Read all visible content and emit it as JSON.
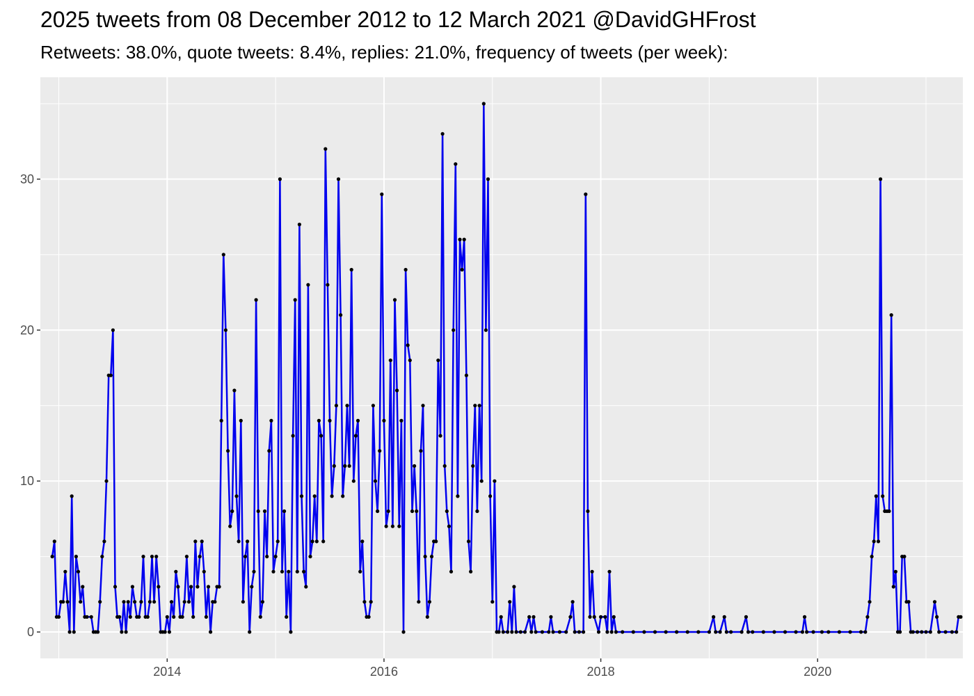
{
  "chart_data": {
    "type": "line",
    "title": "2025 tweets from 08 December 2012 to 12 March 2021 @DavidGHFrost",
    "subtitle": "Retweets: 38.0%, quote tweets: 8.4%, replies: 21.0%, frequency of tweets (per week):",
    "xlabel": "",
    "ylabel": "",
    "x_tick_labels": [
      "2014",
      "2016",
      "2018",
      "2020"
    ],
    "y_tick_labels": [
      "0",
      "10",
      "20",
      "30"
    ],
    "xlim": [
      2012.83,
      2021.34
    ],
    "ylim": [
      -1.75,
      36.75
    ],
    "grid": true,
    "legend": "none",
    "line_color": "#0000ee",
    "point_color": "#000000",
    "series": [
      {
        "values": [
          [
            2012.94,
            5
          ],
          [
            2012.96,
            6
          ],
          [
            2012.98,
            1
          ],
          [
            2013.0,
            1
          ],
          [
            2013.02,
            2
          ],
          [
            2013.04,
            2
          ],
          [
            2013.06,
            4
          ],
          [
            2013.08,
            2
          ],
          [
            2013.1,
            0
          ],
          [
            2013.12,
            9
          ],
          [
            2013.14,
            0
          ],
          [
            2013.16,
            5
          ],
          [
            2013.18,
            4
          ],
          [
            2013.2,
            2
          ],
          [
            2013.22,
            3
          ],
          [
            2013.24,
            1
          ],
          [
            2013.26,
            1
          ],
          [
            2013.3,
            1
          ],
          [
            2013.32,
            0
          ],
          [
            2013.34,
            0
          ],
          [
            2013.36,
            0
          ],
          [
            2013.38,
            2
          ],
          [
            2013.4,
            5
          ],
          [
            2013.42,
            6
          ],
          [
            2013.44,
            10
          ],
          [
            2013.46,
            17
          ],
          [
            2013.48,
            17
          ],
          [
            2013.5,
            20
          ],
          [
            2013.52,
            3
          ],
          [
            2013.54,
            1
          ],
          [
            2013.56,
            1
          ],
          [
            2013.58,
            0
          ],
          [
            2013.6,
            2
          ],
          [
            2013.62,
            0
          ],
          [
            2013.64,
            2
          ],
          [
            2013.66,
            1
          ],
          [
            2013.68,
            3
          ],
          [
            2013.7,
            2
          ],
          [
            2013.72,
            1
          ],
          [
            2013.74,
            1
          ],
          [
            2013.76,
            2
          ],
          [
            2013.78,
            5
          ],
          [
            2013.8,
            1
          ],
          [
            2013.82,
            1
          ],
          [
            2013.84,
            2
          ],
          [
            2013.86,
            5
          ],
          [
            2013.88,
            2
          ],
          [
            2013.9,
            5
          ],
          [
            2013.92,
            3
          ],
          [
            2013.94,
            0
          ],
          [
            2013.96,
            0
          ],
          [
            2013.98,
            0
          ],
          [
            2014.0,
            1
          ],
          [
            2014.02,
            0
          ],
          [
            2014.04,
            2
          ],
          [
            2014.06,
            1
          ],
          [
            2014.08,
            4
          ],
          [
            2014.1,
            3
          ],
          [
            2014.12,
            1
          ],
          [
            2014.14,
            1
          ],
          [
            2014.16,
            2
          ],
          [
            2014.18,
            5
          ],
          [
            2014.2,
            2
          ],
          [
            2014.22,
            3
          ],
          [
            2014.24,
            1
          ],
          [
            2014.26,
            6
          ],
          [
            2014.28,
            3
          ],
          [
            2014.3,
            5
          ],
          [
            2014.32,
            6
          ],
          [
            2014.34,
            4
          ],
          [
            2014.36,
            1
          ],
          [
            2014.38,
            3
          ],
          [
            2014.4,
            0
          ],
          [
            2014.42,
            2
          ],
          [
            2014.44,
            2
          ],
          [
            2014.46,
            3
          ],
          [
            2014.48,
            3
          ],
          [
            2014.5,
            14
          ],
          [
            2014.52,
            25
          ],
          [
            2014.54,
            20
          ],
          [
            2014.56,
            12
          ],
          [
            2014.58,
            7
          ],
          [
            2014.6,
            8
          ],
          [
            2014.62,
            16
          ],
          [
            2014.64,
            9
          ],
          [
            2014.66,
            6
          ],
          [
            2014.68,
            14
          ],
          [
            2014.7,
            2
          ],
          [
            2014.72,
            5
          ],
          [
            2014.74,
            6
          ],
          [
            2014.76,
            0
          ],
          [
            2014.78,
            3
          ],
          [
            2014.8,
            4
          ],
          [
            2014.82,
            22
          ],
          [
            2014.84,
            8
          ],
          [
            2014.86,
            1
          ],
          [
            2014.88,
            2
          ],
          [
            2014.9,
            8
          ],
          [
            2014.92,
            5
          ],
          [
            2014.94,
            12
          ],
          [
            2014.96,
            14
          ],
          [
            2014.98,
            4
          ],
          [
            2015.0,
            5
          ],
          [
            2015.02,
            6
          ],
          [
            2015.04,
            30
          ],
          [
            2015.06,
            4
          ],
          [
            2015.08,
            8
          ],
          [
            2015.1,
            1
          ],
          [
            2015.12,
            4
          ],
          [
            2015.14,
            0
          ],
          [
            2015.16,
            13
          ],
          [
            2015.18,
            22
          ],
          [
            2015.2,
            4
          ],
          [
            2015.22,
            27
          ],
          [
            2015.24,
            9
          ],
          [
            2015.26,
            4
          ],
          [
            2015.28,
            3
          ],
          [
            2015.3,
            23
          ],
          [
            2015.32,
            5
          ],
          [
            2015.34,
            6
          ],
          [
            2015.36,
            9
          ],
          [
            2015.38,
            6
          ],
          [
            2015.4,
            14
          ],
          [
            2015.42,
            13
          ],
          [
            2015.44,
            6
          ],
          [
            2015.46,
            32
          ],
          [
            2015.48,
            23
          ],
          [
            2015.5,
            14
          ],
          [
            2015.52,
            9
          ],
          [
            2015.54,
            11
          ],
          [
            2015.56,
            15
          ],
          [
            2015.58,
            30
          ],
          [
            2015.6,
            21
          ],
          [
            2015.62,
            9
          ],
          [
            2015.64,
            11
          ],
          [
            2015.66,
            15
          ],
          [
            2015.68,
            11
          ],
          [
            2015.7,
            24
          ],
          [
            2015.72,
            10
          ],
          [
            2015.74,
            13
          ],
          [
            2015.76,
            14
          ],
          [
            2015.78,
            4
          ],
          [
            2015.8,
            6
          ],
          [
            2015.82,
            2
          ],
          [
            2015.84,
            1
          ],
          [
            2015.86,
            1
          ],
          [
            2015.88,
            2
          ],
          [
            2015.9,
            15
          ],
          [
            2015.92,
            10
          ],
          [
            2015.94,
            8
          ],
          [
            2015.96,
            12
          ],
          [
            2015.98,
            29
          ],
          [
            2016.0,
            14
          ],
          [
            2016.02,
            7
          ],
          [
            2016.04,
            8
          ],
          [
            2016.06,
            18
          ],
          [
            2016.08,
            7
          ],
          [
            2016.1,
            22
          ],
          [
            2016.12,
            16
          ],
          [
            2016.14,
            7
          ],
          [
            2016.16,
            14
          ],
          [
            2016.18,
            0
          ],
          [
            2016.2,
            24
          ],
          [
            2016.22,
            19
          ],
          [
            2016.24,
            18
          ],
          [
            2016.26,
            8
          ],
          [
            2016.28,
            11
          ],
          [
            2016.3,
            8
          ],
          [
            2016.32,
            2
          ],
          [
            2016.34,
            12
          ],
          [
            2016.36,
            15
          ],
          [
            2016.38,
            5
          ],
          [
            2016.4,
            1
          ],
          [
            2016.42,
            2
          ],
          [
            2016.44,
            5
          ],
          [
            2016.46,
            6
          ],
          [
            2016.48,
            6
          ],
          [
            2016.5,
            18
          ],
          [
            2016.52,
            13
          ],
          [
            2016.54,
            33
          ],
          [
            2016.56,
            11
          ],
          [
            2016.58,
            8
          ],
          [
            2016.6,
            7
          ],
          [
            2016.62,
            4
          ],
          [
            2016.64,
            20
          ],
          [
            2016.66,
            31
          ],
          [
            2016.68,
            9
          ],
          [
            2016.7,
            26
          ],
          [
            2016.72,
            24
          ],
          [
            2016.74,
            26
          ],
          [
            2016.76,
            17
          ],
          [
            2016.78,
            6
          ],
          [
            2016.8,
            4
          ],
          [
            2016.82,
            11
          ],
          [
            2016.84,
            15
          ],
          [
            2016.86,
            8
          ],
          [
            2016.88,
            15
          ],
          [
            2016.9,
            10
          ],
          [
            2016.92,
            35
          ],
          [
            2016.94,
            20
          ],
          [
            2016.96,
            30
          ],
          [
            2016.98,
            9
          ],
          [
            2017.0,
            2
          ],
          [
            2017.02,
            10
          ],
          [
            2017.04,
            0
          ],
          [
            2017.06,
            0
          ],
          [
            2017.08,
            1
          ],
          [
            2017.1,
            0
          ],
          [
            2017.14,
            0
          ],
          [
            2017.16,
            2
          ],
          [
            2017.18,
            0
          ],
          [
            2017.2,
            3
          ],
          [
            2017.22,
            0
          ],
          [
            2017.26,
            0
          ],
          [
            2017.3,
            0
          ],
          [
            2017.34,
            1
          ],
          [
            2017.36,
            0
          ],
          [
            2017.38,
            1
          ],
          [
            2017.4,
            0
          ],
          [
            2017.46,
            0
          ],
          [
            2017.52,
            0
          ],
          [
            2017.54,
            1
          ],
          [
            2017.56,
            0
          ],
          [
            2017.62,
            0
          ],
          [
            2017.68,
            0
          ],
          [
            2017.72,
            1
          ],
          [
            2017.74,
            2
          ],
          [
            2017.76,
            0
          ],
          [
            2017.8,
            0
          ],
          [
            2017.84,
            0
          ],
          [
            2017.86,
            29
          ],
          [
            2017.88,
            8
          ],
          [
            2017.9,
            1
          ],
          [
            2017.92,
            4
          ],
          [
            2017.94,
            1
          ],
          [
            2017.98,
            0
          ],
          [
            2018.0,
            1
          ],
          [
            2018.04,
            1
          ],
          [
            2018.06,
            0
          ],
          [
            2018.08,
            4
          ],
          [
            2018.1,
            0
          ],
          [
            2018.12,
            1
          ],
          [
            2018.14,
            0
          ],
          [
            2018.2,
            0
          ],
          [
            2018.3,
            0
          ],
          [
            2018.4,
            0
          ],
          [
            2018.5,
            0
          ],
          [
            2018.6,
            0
          ],
          [
            2018.7,
            0
          ],
          [
            2018.8,
            0
          ],
          [
            2018.9,
            0
          ],
          [
            2019.0,
            0
          ],
          [
            2019.04,
            1
          ],
          [
            2019.06,
            0
          ],
          [
            2019.1,
            0
          ],
          [
            2019.14,
            1
          ],
          [
            2019.16,
            0
          ],
          [
            2019.2,
            0
          ],
          [
            2019.3,
            0
          ],
          [
            2019.34,
            1
          ],
          [
            2019.36,
            0
          ],
          [
            2019.4,
            0
          ],
          [
            2019.5,
            0
          ],
          [
            2019.6,
            0
          ],
          [
            2019.7,
            0
          ],
          [
            2019.8,
            0
          ],
          [
            2019.86,
            0
          ],
          [
            2019.88,
            1
          ],
          [
            2019.9,
            0
          ],
          [
            2019.96,
            0
          ],
          [
            2020.04,
            0
          ],
          [
            2020.1,
            0
          ],
          [
            2020.2,
            0
          ],
          [
            2020.3,
            0
          ],
          [
            2020.4,
            0
          ],
          [
            2020.44,
            0
          ],
          [
            2020.46,
            1
          ],
          [
            2020.48,
            2
          ],
          [
            2020.5,
            5
          ],
          [
            2020.52,
            6
          ],
          [
            2020.54,
            9
          ],
          [
            2020.56,
            6
          ],
          [
            2020.58,
            30
          ],
          [
            2020.6,
            9
          ],
          [
            2020.62,
            8
          ],
          [
            2020.64,
            8
          ],
          [
            2020.66,
            8
          ],
          [
            2020.68,
            21
          ],
          [
            2020.7,
            3
          ],
          [
            2020.72,
            4
          ],
          [
            2020.74,
            0
          ],
          [
            2020.76,
            0
          ],
          [
            2020.78,
            5
          ],
          [
            2020.8,
            5
          ],
          [
            2020.82,
            2
          ],
          [
            2020.84,
            2
          ],
          [
            2020.86,
            0
          ],
          [
            2020.88,
            0
          ],
          [
            2020.92,
            0
          ],
          [
            2020.96,
            0
          ],
          [
            2021.0,
            0
          ],
          [
            2021.04,
            0
          ],
          [
            2021.08,
            2
          ],
          [
            2021.1,
            1
          ],
          [
            2021.12,
            0
          ],
          [
            2021.18,
            0
          ],
          [
            2021.24,
            0
          ],
          [
            2021.28,
            0
          ],
          [
            2021.3,
            1
          ],
          [
            2021.32,
            1
          ]
        ]
      }
    ]
  }
}
